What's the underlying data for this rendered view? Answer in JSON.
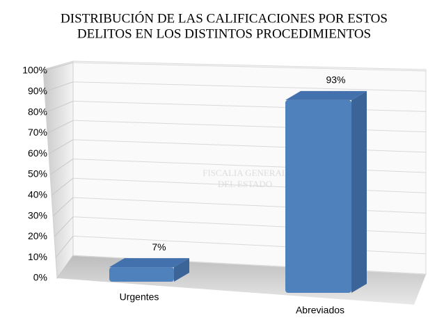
{
  "chart_data": {
    "type": "bar3d",
    "title": [
      "DISTRIBUCIÓN DE LAS CALIFICACIONES POR ESTOS",
      "DELITOS EN LOS DISTINTOS PROCEDIMIENTOS"
    ],
    "watermark": [
      "FISCALIA GENERAL",
      "DEL ESTADO"
    ],
    "categories": [
      "Urgentes",
      "Abreviados"
    ],
    "values": [
      7,
      93
    ],
    "value_labels": [
      "7%",
      "93%"
    ],
    "color": "#4f81bd",
    "ylim": [
      0,
      100
    ],
    "yticks": [
      {
        "value": 0,
        "label": "0%"
      },
      {
        "value": 10,
        "label": "10%"
      },
      {
        "value": 20,
        "label": "20%"
      },
      {
        "value": 30,
        "label": "30%"
      },
      {
        "value": 40,
        "label": "40%"
      },
      {
        "value": 50,
        "label": "50%"
      },
      {
        "value": 60,
        "label": "60%"
      },
      {
        "value": 70,
        "label": "70%"
      },
      {
        "value": 80,
        "label": "80%"
      },
      {
        "value": 90,
        "label": "90%"
      },
      {
        "value": 100,
        "label": "100%"
      }
    ],
    "grid": true
  }
}
